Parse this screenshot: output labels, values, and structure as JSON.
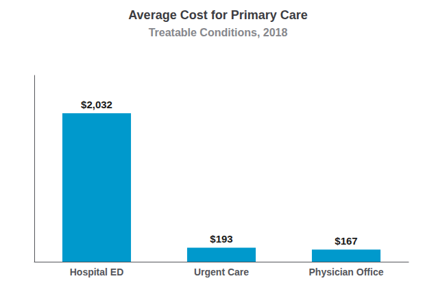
{
  "chart_data": {
    "type": "bar",
    "title": "Average Cost for Primary Care",
    "subtitle": "Treatable Conditions, 2018",
    "categories": [
      "Hospital ED",
      "Urgent Care",
      "Physician Office"
    ],
    "values": [
      2032,
      193,
      167
    ],
    "value_labels": [
      "$2,032",
      "$193",
      "$167"
    ],
    "color": "#0099cc",
    "ylim": [
      0,
      2550
    ],
    "grid": false,
    "data_labels": true,
    "tick_labels": "x"
  }
}
